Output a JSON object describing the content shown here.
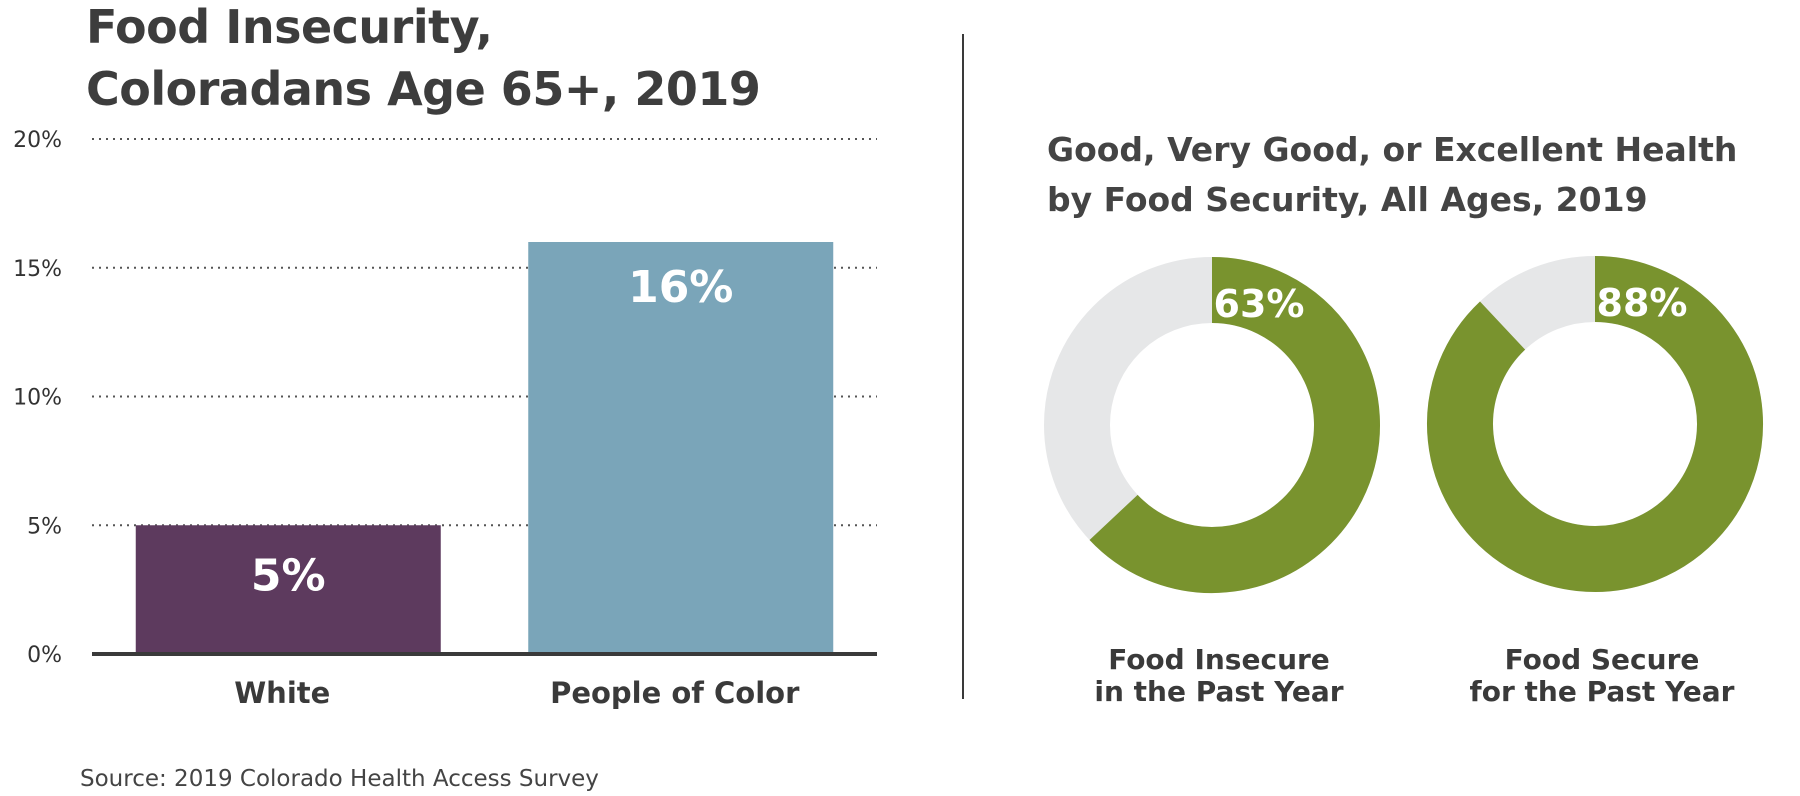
{
  "chart_data": [
    {
      "type": "bar",
      "title": "Food Insecurity,",
      "subtitle": "Coloradans Age 65+, 2019",
      "categories": [
        "White",
        "People of Color"
      ],
      "values": [
        5,
        16
      ],
      "value_labels": [
        "5%",
        "16%"
      ],
      "yticks": [
        "0%",
        "5%",
        "10%",
        "15%",
        "20%"
      ],
      "ylim": [
        0,
        20
      ],
      "grid": "dotted horizontal",
      "colors": [
        "#5d3a5e",
        "#7aa5b9"
      ]
    },
    {
      "type": "pie",
      "variant": "donut",
      "title_lines": [
        "Good, Very Good, or Excellent Health",
        "by Food Security, All Ages, 2019"
      ],
      "charts": [
        {
          "category_lines": [
            "Food Insecure",
            "in the Past Year"
          ],
          "value": 63,
          "label": "63%"
        },
        {
          "category_lines": [
            "Food Secure",
            "for the Past Year"
          ],
          "value": 88,
          "label": "88%"
        }
      ],
      "colors": {
        "value": "#79932e",
        "remainder": "#e6e7e8"
      }
    }
  ],
  "source": "Source: 2019 Colorado Health Access Survey"
}
